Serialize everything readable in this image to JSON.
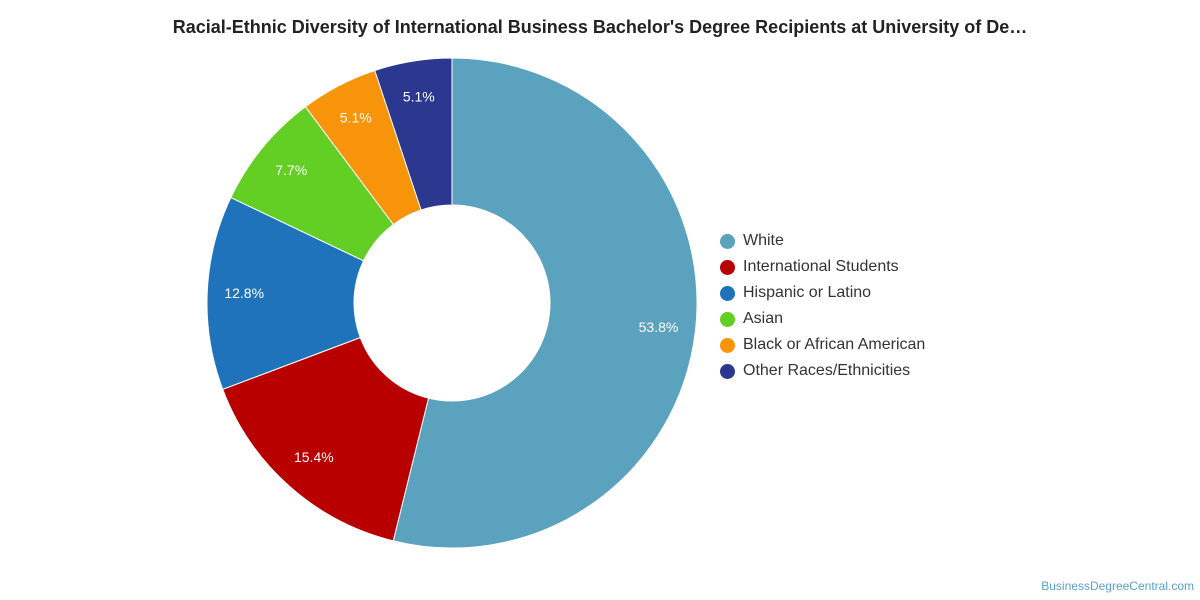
{
  "title": "Racial-Ethnic Diversity of International Business Bachelor's Degree Recipients at University of De…",
  "credit": "BusinessDegreeCentral.com",
  "chart_data": {
    "type": "pie",
    "donut": true,
    "title": "Racial-Ethnic Diversity of International Business Bachelor's Degree Recipients at University of De…",
    "legend_position": "right",
    "slices": [
      {
        "name": "White",
        "value": 53.8,
        "label": "53.8%",
        "color": "#5ba2bf"
      },
      {
        "name": "International Students",
        "value": 15.4,
        "label": "15.4%",
        "color": "#b80000"
      },
      {
        "name": "Hispanic or Latino",
        "value": 12.8,
        "label": "12.8%",
        "color": "#1f73ba"
      },
      {
        "name": "Asian",
        "value": 7.7,
        "label": "7.7%",
        "color": "#63cf25"
      },
      {
        "name": "Black or African American",
        "value": 5.1,
        "label": "5.1%",
        "color": "#f7940a"
      },
      {
        "name": "Other Races/Ethnicities",
        "value": 5.1,
        "label": "5.1%",
        "color": "#2c3890"
      }
    ]
  }
}
